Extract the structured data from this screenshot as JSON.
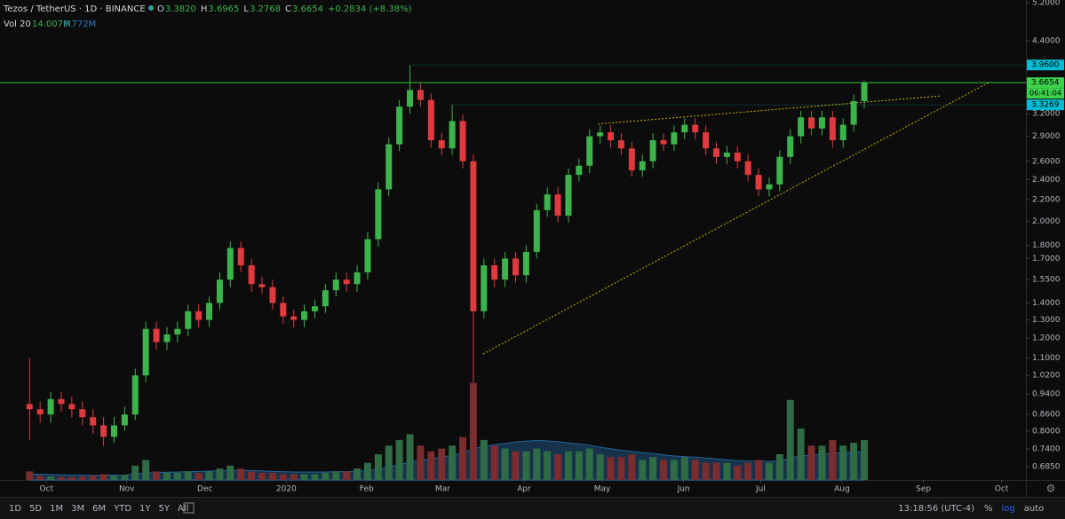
{
  "chart_data": {
    "type": "candlestick",
    "title": "Tezos / TetherUS · 1D · BINANCE",
    "ohlc": [
      {
        "key": "O",
        "text": "3.3820"
      },
      {
        "key": "H",
        "text": "3.6965"
      },
      {
        "key": "L",
        "text": "3.2768"
      },
      {
        "key": "C",
        "text": "3.6654"
      }
    ],
    "change": "+0.2834 (+8.38%)",
    "up_color": "#3cb44b",
    "down_color": "#e0393e",
    "open": [
      0.9,
      0.88,
      0.86,
      0.92,
      0.9,
      0.88,
      0.85,
      0.82,
      0.78,
      0.82,
      0.86,
      1.02,
      1.25,
      1.18,
      1.22,
      1.25,
      1.35,
      1.3,
      1.4,
      1.55,
      1.78,
      1.65,
      1.52,
      1.5,
      1.4,
      1.32,
      1.3,
      1.35,
      1.38,
      1.48,
      1.55,
      1.52,
      1.6,
      1.85,
      2.3,
      2.8,
      3.3,
      3.55,
      3.4,
      2.85,
      2.75,
      3.1,
      2.6,
      1.35,
      1.65,
      1.55,
      1.7,
      1.58,
      1.75,
      2.1,
      2.25,
      2.05,
      2.45,
      2.55,
      2.9,
      2.95,
      2.85,
      2.75,
      2.5,
      2.6,
      2.85,
      2.8,
      2.95,
      3.05,
      2.95,
      2.75,
      2.65,
      2.7,
      2.6,
      2.45,
      2.3,
      2.35,
      2.65,
      2.9,
      3.15,
      3.0,
      3.15,
      2.85,
      3.05,
      3.382
    ],
    "high": [
      1.1,
      0.91,
      0.95,
      0.95,
      0.93,
      0.91,
      0.88,
      0.85,
      0.85,
      0.89,
      1.05,
      1.29,
      1.29,
      1.26,
      1.29,
      1.39,
      1.39,
      1.44,
      1.6,
      1.83,
      1.83,
      1.7,
      1.57,
      1.55,
      1.44,
      1.36,
      1.39,
      1.42,
      1.52,
      1.6,
      1.6,
      1.65,
      1.91,
      2.37,
      2.88,
      3.4,
      3.96,
      3.66,
      3.5,
      2.94,
      3.3269,
      3.19,
      2.68,
      1.7,
      1.7,
      1.75,
      1.75,
      1.8,
      2.16,
      2.32,
      2.32,
      2.52,
      2.63,
      2.99,
      3.04,
      3.04,
      2.94,
      2.83,
      2.68,
      2.94,
      2.94,
      3.04,
      3.14,
      3.14,
      3.04,
      2.83,
      2.78,
      2.78,
      2.68,
      2.52,
      2.42,
      2.73,
      2.99,
      3.24,
      3.24,
      3.24,
      3.24,
      3.14,
      3.48,
      3.6965
    ],
    "low": [
      0.77,
      0.83,
      0.83,
      0.87,
      0.85,
      0.82,
      0.79,
      0.75,
      0.76,
      0.8,
      0.84,
      0.99,
      1.14,
      1.14,
      1.18,
      1.21,
      1.26,
      1.26,
      1.36,
      1.5,
      1.6,
      1.47,
      1.46,
      1.36,
      1.28,
      1.26,
      1.26,
      1.31,
      1.34,
      1.44,
      1.47,
      1.47,
      1.55,
      1.79,
      2.23,
      2.72,
      3.2,
      3.3,
      2.76,
      2.67,
      2.67,
      2.52,
      0.99,
      1.31,
      1.5,
      1.5,
      1.53,
      1.53,
      1.7,
      2.04,
      1.99,
      1.99,
      2.38,
      2.47,
      2.81,
      2.76,
      2.67,
      2.43,
      2.43,
      2.52,
      2.72,
      2.72,
      2.86,
      2.86,
      2.67,
      2.57,
      2.57,
      2.52,
      2.38,
      2.23,
      2.23,
      2.28,
      2.57,
      2.81,
      2.91,
      2.91,
      2.76,
      2.76,
      2.96,
      3.2768
    ],
    "close": [
      0.88,
      0.86,
      0.92,
      0.9,
      0.88,
      0.85,
      0.82,
      0.78,
      0.82,
      0.86,
      1.02,
      1.25,
      1.18,
      1.22,
      1.25,
      1.35,
      1.3,
      1.4,
      1.55,
      1.78,
      1.65,
      1.52,
      1.5,
      1.4,
      1.32,
      1.3,
      1.35,
      1.38,
      1.48,
      1.55,
      1.52,
      1.6,
      1.85,
      2.3,
      2.8,
      3.3,
      3.55,
      3.4,
      2.85,
      2.75,
      3.1,
      2.6,
      1.35,
      1.65,
      1.55,
      1.7,
      1.58,
      1.75,
      2.1,
      2.25,
      2.05,
      2.45,
      2.55,
      2.9,
      2.95,
      2.85,
      2.75,
      2.5,
      2.6,
      2.85,
      2.8,
      2.95,
      3.05,
      2.95,
      2.75,
      2.65,
      2.7,
      2.6,
      2.45,
      2.3,
      2.35,
      2.65,
      2.9,
      3.15,
      3.0,
      3.15,
      2.85,
      3.05,
      3.382,
      3.6654
    ],
    "volume": {
      "name": "Vol 20",
      "values": [
        3,
        1.5,
        1.2,
        1,
        1,
        1.2,
        1.5,
        2,
        1.5,
        1.8,
        5,
        7,
        3,
        2.5,
        2.5,
        3,
        2.5,
        3,
        4,
        5,
        4,
        3,
        2.5,
        2.5,
        2,
        2,
        2,
        2,
        2.5,
        3,
        3,
        4,
        6,
        9,
        12,
        14,
        16,
        12,
        10,
        11,
        12,
        15,
        34,
        14,
        12,
        11,
        10,
        10,
        11,
        10,
        9,
        10,
        10,
        11,
        9,
        8,
        8,
        9,
        7,
        8,
        7,
        7,
        8,
        7,
        6,
        6,
        6,
        5,
        6,
        7,
        6,
        9,
        28,
        18,
        12,
        12,
        14,
        12,
        13,
        14.007
      ],
      "last_label": "14.007M",
      "up_color": "#2f6b45",
      "down_color": "#7a2c2f"
    },
    "volume_ma": {
      "values": [
        2,
        2,
        1.9,
        1.8,
        1.7,
        1.7,
        1.6,
        1.7,
        1.7,
        1.7,
        2,
        2.4,
        2.6,
        2.7,
        2.8,
        2.9,
        3,
        3.1,
        3.2,
        3.3,
        3.3,
        3.3,
        3.2,
        3,
        2.9,
        2.8,
        2.8,
        2.8,
        2.8,
        2.9,
        2.9,
        3,
        3.3,
        3.8,
        4.5,
        5.3,
        6.2,
        6.9,
        7.5,
        8,
        8.6,
        9.4,
        11,
        11.7,
        12.3,
        12.8,
        13.3,
        13.6,
        13.8,
        13.7,
        13.4,
        13,
        12.6,
        12.2,
        11.5,
        10.9,
        10.4,
        10,
        9.6,
        9.3,
        8.8,
        8.4,
        8.2,
        8,
        7.7,
        7.4,
        7.1,
        6.8,
        6.6,
        6.6,
        6.5,
        6.6,
        7.7,
        8.4,
        8.7,
        9,
        9.4,
        9.6,
        9.8,
        9.772
      ],
      "last_label": "9.772M",
      "color": "#2a7fc4"
    },
    "volume_ylim": [
      0,
      45
    ],
    "xlim": [
      -2.8,
      94.3
    ],
    "xticks": [
      {
        "value": 1.6,
        "label": "Oct"
      },
      {
        "value": 9.2,
        "label": "Nov"
      },
      {
        "value": 16.6,
        "label": "Dec"
      },
      {
        "value": 24.3,
        "label": "2020"
      },
      {
        "value": 31.9,
        "label": "Feb"
      },
      {
        "value": 39.1,
        "label": "Mar"
      },
      {
        "value": 46.8,
        "label": "Apr"
      },
      {
        "value": 54.2,
        "label": "May"
      },
      {
        "value": 61.9,
        "label": "Jun"
      },
      {
        "value": 69.2,
        "label": "Jul"
      },
      {
        "value": 76.9,
        "label": "Aug"
      },
      {
        "value": 84.6,
        "label": "Sep"
      },
      {
        "value": 92.0,
        "label": "Oct"
      }
    ],
    "log_scale": true,
    "ylim": [
      0.646,
      5.26
    ],
    "yticks": [
      {
        "value": 5.2,
        "label": "5.2000"
      },
      {
        "value": 4.4,
        "label": "4.4000"
      },
      {
        "value": 3.2,
        "label": "3.2000"
      },
      {
        "value": 2.9,
        "label": "2.9000"
      },
      {
        "value": 2.6,
        "label": "2.6000"
      },
      {
        "value": 2.4,
        "label": "2.4000"
      },
      {
        "value": 2.2,
        "label": "2.2000"
      },
      {
        "value": 2,
        "label": "2.0000"
      },
      {
        "value": 1.8,
        "label": "1.8000"
      },
      {
        "value": 1.7,
        "label": "1.7000"
      },
      {
        "value": 1.55,
        "label": "1.5500"
      },
      {
        "value": 1.4,
        "label": "1.4000"
      },
      {
        "value": 1.3,
        "label": "1.3000"
      },
      {
        "value": 1.2,
        "label": "1.2000"
      },
      {
        "value": 1.1,
        "label": "1.1000"
      },
      {
        "value": 1.02,
        "label": "1.0200"
      },
      {
        "value": 0.94,
        "label": "0.9400"
      },
      {
        "value": 0.86,
        "label": "0.8600"
      },
      {
        "value": 0.8,
        "label": "0.8000"
      },
      {
        "value": 0.74,
        "label": "0.7400"
      },
      {
        "value": 0.685,
        "label": "0.6850"
      }
    ],
    "price_lines": [
      {
        "value": 3.96,
        "label": "3.9600",
        "color": "#00bcd4",
        "start": 36.3,
        "dotted": true
      },
      {
        "value": 3.6654,
        "label": "3.6654",
        "color": "#3cd24b",
        "start": -2.8,
        "dotted": false
      },
      {
        "value": 3.3269,
        "label": "3.3269",
        "color": "#00bcd4",
        "start": 40.1,
        "dotted": true
      }
    ],
    "countdown": "06:41:04",
    "trend_lines": [
      {
        "x": [
          42.9,
          90.8
        ],
        "y": [
          1.12,
          3.67
        ],
        "color": "#c8b400"
      },
      {
        "x": [
          53.8,
          86.3
        ],
        "y": [
          3.06,
          3.46
        ],
        "color": "#c8b400"
      }
    ],
    "ranges": [
      "1D",
      "5D",
      "1M",
      "3M",
      "6M",
      "YTD",
      "1Y",
      "5Y",
      "All"
    ],
    "clock": "13:18:56 (UTC-4)",
    "scale_buttons": [
      "%",
      "log",
      "auto"
    ]
  }
}
